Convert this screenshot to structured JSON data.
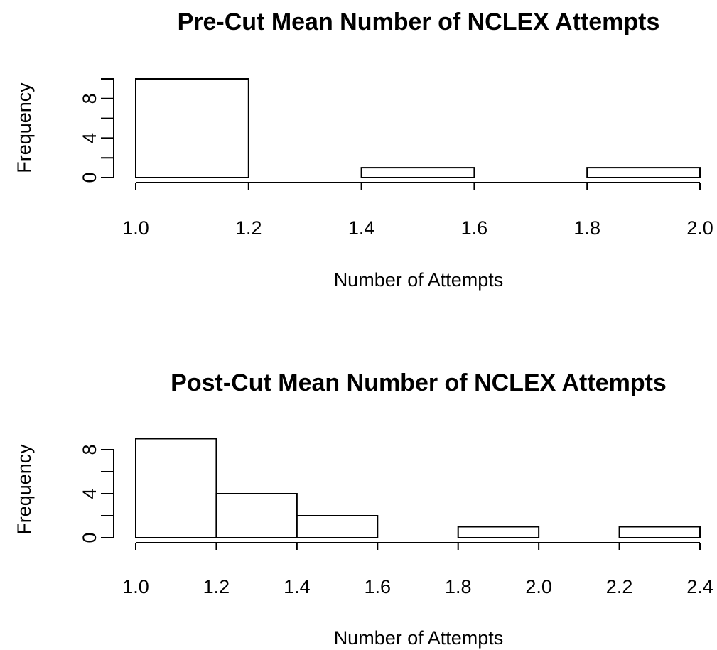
{
  "chart_data": [
    {
      "type": "bar",
      "title": "Pre-Cut Mean Number of NCLEX Attempts",
      "xlabel": "Number of Attempts",
      "ylabel": "Frequency",
      "bins": [
        {
          "start": 1.0,
          "end": 1.2,
          "count": 10
        },
        {
          "start": 1.2,
          "end": 1.4,
          "count": 0
        },
        {
          "start": 1.4,
          "end": 1.6,
          "count": 1
        },
        {
          "start": 1.6,
          "end": 1.8,
          "count": 0
        },
        {
          "start": 1.8,
          "end": 2.0,
          "count": 1
        }
      ],
      "xlim": [
        1.0,
        2.0
      ],
      "ylim": [
        0,
        10
      ],
      "x_ticks": [
        "1.0",
        "1.2",
        "1.4",
        "1.6",
        "1.8",
        "2.0"
      ],
      "y_ticks": [
        "0",
        "4",
        "8"
      ],
      "y_tick_values": [
        0,
        4,
        8
      ],
      "y_minor_tick_values": [
        0,
        2,
        4,
        6,
        8,
        10
      ],
      "grid": false
    },
    {
      "type": "bar",
      "title": "Post-Cut Mean Number of NCLEX Attempts",
      "xlabel": "Number of Attempts",
      "ylabel": "Frequency",
      "bins": [
        {
          "start": 1.0,
          "end": 1.2,
          "count": 9
        },
        {
          "start": 1.2,
          "end": 1.4,
          "count": 4
        },
        {
          "start": 1.4,
          "end": 1.6,
          "count": 2
        },
        {
          "start": 1.6,
          "end": 1.8,
          "count": 0
        },
        {
          "start": 1.8,
          "end": 2.0,
          "count": 1
        },
        {
          "start": 2.0,
          "end": 2.2,
          "count": 0
        },
        {
          "start": 2.2,
          "end": 2.4,
          "count": 1
        }
      ],
      "xlim": [
        1.0,
        2.4
      ],
      "ylim": [
        0,
        8
      ],
      "x_ticks": [
        "1.0",
        "1.2",
        "1.4",
        "1.6",
        "1.8",
        "2.0",
        "2.2",
        "2.4"
      ],
      "y_ticks": [
        "0",
        "4",
        "8"
      ],
      "y_tick_values": [
        0,
        4,
        8
      ],
      "y_minor_tick_values": [
        0,
        2,
        4,
        6,
        8
      ],
      "grid": false
    }
  ]
}
